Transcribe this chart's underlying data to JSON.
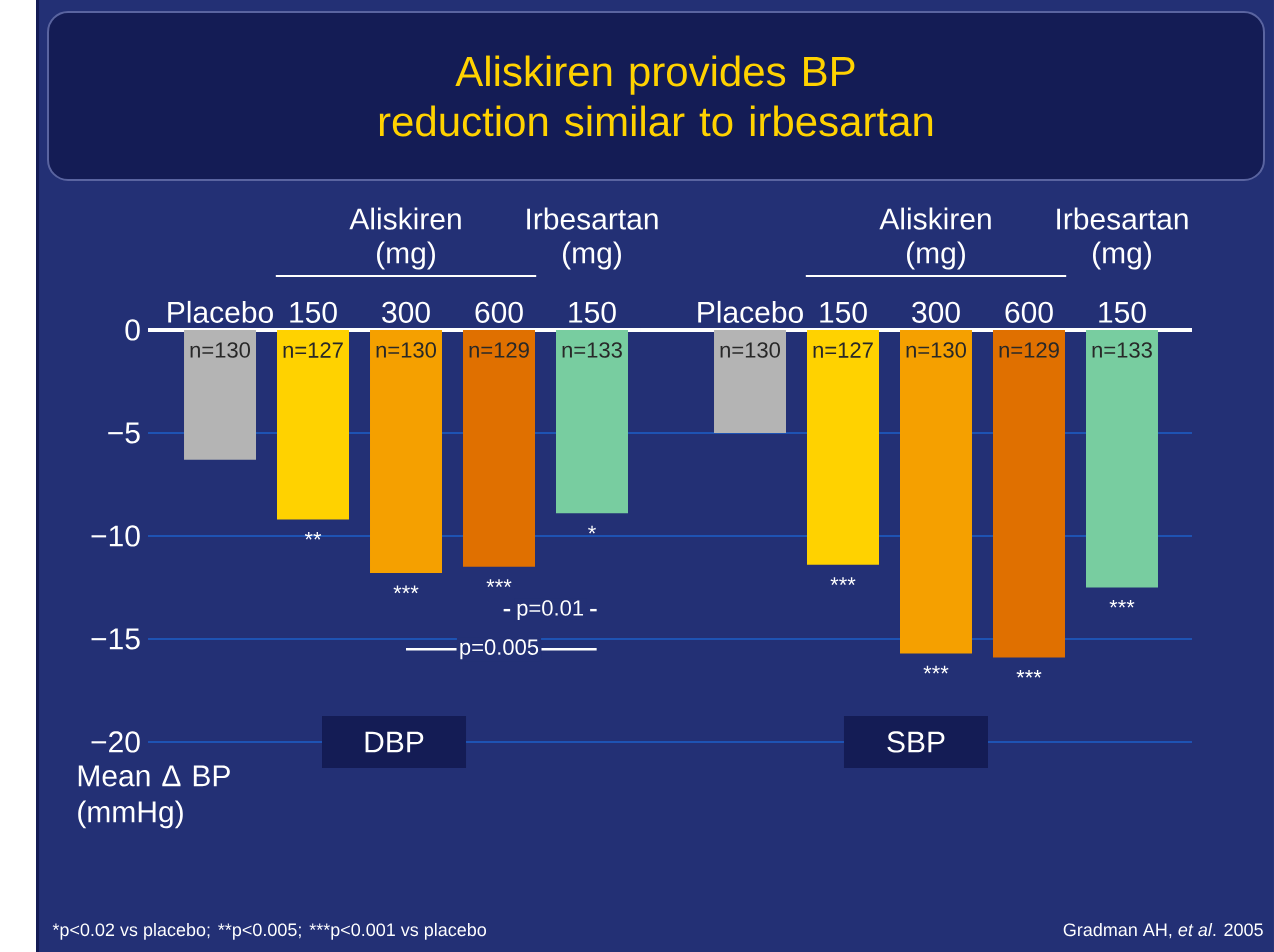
{
  "chart_data": [
    {
      "type": "bar",
      "title": "Aliskiren provides BP reduction similar to irbesartan",
      "xlabel": "DBP",
      "ylabel": "Mean Δ BP (mmHg)",
      "categories": [
        "Placebo",
        "150",
        "300",
        "600",
        "150"
      ],
      "values": [
        -6.3,
        -9.2,
        -11.8,
        -11.5,
        -8.9
      ],
      "colors": [
        "#b4b4b4",
        "#ffd200",
        "#f5a000",
        "#e07000",
        "#78cda0"
      ],
      "ylim": [
        -20,
        0
      ],
      "yticks": [
        {
          "value": -20,
          "label": "−20"
        },
        {
          "value": -15,
          "label": "−15"
        },
        {
          "value": -10,
          "label": "−10"
        },
        {
          "value": -5,
          "label": "−5"
        },
        0
      ],
      "grid": "y",
      "annotations": [
        "n=130",
        "n=127",
        "n=130",
        "n=129",
        "n=133",
        "**",
        "***",
        "***",
        "*",
        "Aliskiren (mg)",
        "Irbesartan (mg)",
        "p=0.01",
        "p=0.005",
        "*p<0.02 vs placebo;",
        "**p<0.005;",
        "***p<0.001 vs placebo"
      ]
    },
    {
      "type": "bar",
      "xlabel": "SBP",
      "categories": [
        "Placebo",
        "150",
        "300",
        "600",
        "150"
      ],
      "values": [
        -5.0,
        -11.4,
        -15.7,
        -15.9,
        -12.5
      ],
      "colors": [
        "#b4b4b4",
        "#ffd200",
        "#f5a000",
        "#e07000",
        "#78cda0"
      ],
      "ylim": [
        -20,
        0
      ],
      "yticks": [
        -20,
        -15,
        -10,
        -5,
        0
      ],
      "grid": "y",
      "tick_labels": "x",
      "annotations": [
        "n=130",
        "n=127",
        "n=130",
        "n=129",
        "n=133",
        "***",
        "***",
        "***",
        "***",
        "Aliskiren (mg)",
        "Irbesartan (mg)",
        "Gradman AH, *et al*. 2005"
      ]
    }
  ]
}
